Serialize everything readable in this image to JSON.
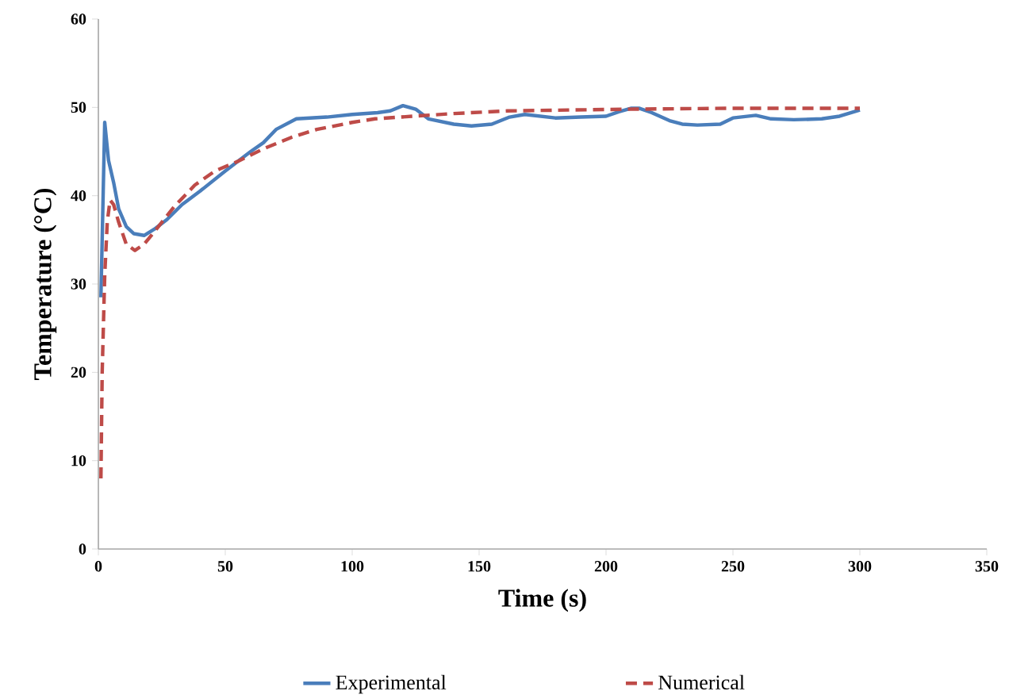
{
  "chart_data": {
    "type": "line",
    "xlabel": "Time  (s)",
    "ylabel": "Temperature  (°C)",
    "xlim": [
      0,
      350
    ],
    "xticks": [
      0,
      50,
      100,
      150,
      200,
      250,
      300,
      350
    ],
    "ylim": [
      0,
      60
    ],
    "yticks": [
      0,
      10,
      20,
      30,
      40,
      50,
      60
    ],
    "legend": "bottom",
    "marker": "none",
    "series": [
      {
        "name": "Experimental",
        "color": "#4a7ebb",
        "line_style": "solid",
        "x": [
          1,
          2.5,
          4,
          6,
          8,
          11,
          14,
          18,
          22,
          27,
          33,
          40,
          50,
          60,
          65,
          70,
          78,
          90,
          100,
          110,
          115,
          120,
          125,
          130,
          140,
          147,
          155,
          162,
          168,
          180,
          190,
          200,
          205,
          210,
          213,
          218,
          225,
          230,
          236,
          245,
          250,
          259,
          265,
          274,
          285,
          292,
          300
        ],
        "values": [
          28.5,
          48.3,
          44,
          41.5,
          38.5,
          36.5,
          35.7,
          35.5,
          36.2,
          37.3,
          39,
          40.5,
          42.8,
          45,
          46,
          47.5,
          48.7,
          48.9,
          49.2,
          49.4,
          49.6,
          50.2,
          49.8,
          48.7,
          48.1,
          47.9,
          48.1,
          48.9,
          49.2,
          48.8,
          48.9,
          49,
          49.5,
          49.9,
          49.9,
          49.4,
          48.5,
          48.1,
          48,
          48.1,
          48.8,
          49.1,
          48.7,
          48.6,
          48.7,
          49,
          49.7
        ]
      },
      {
        "name": "Numerical",
        "color": "#be4b48",
        "line_style": "dashed",
        "x": [
          1,
          1.5,
          2.5,
          3.5,
          4.6,
          6,
          8,
          11,
          14.4,
          18,
          21.7,
          30,
          38,
          46,
          55,
          65,
          76,
          86,
          100,
          109,
          124,
          140,
          161,
          185,
          211,
          250,
          300
        ],
        "values": [
          8,
          20,
          31,
          37,
          39.5,
          39,
          37,
          34.5,
          33.8,
          34.5,
          35.8,
          38.8,
          41.2,
          42.8,
          43.9,
          45.3,
          46.6,
          47.5,
          48.3,
          48.7,
          49,
          49.3,
          49.6,
          49.7,
          49.8,
          49.9,
          49.9
        ]
      }
    ]
  }
}
